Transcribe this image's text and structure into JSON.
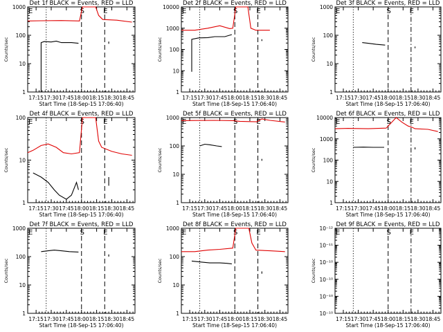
{
  "chart_data": [
    {
      "type": "line",
      "title": "Det 1f BLACK = Events, RED = LLD",
      "ylabel": "Counts/sec",
      "xlabel": "Start Time (18-Sep-15 17:06:40)",
      "yscale": "log",
      "ylim": [
        1,
        1000
      ],
      "ytick_labels": [
        "1",
        "10",
        "100",
        "1000"
      ],
      "x_tick_labels": [
        "17:15",
        "17:30",
        "17:45",
        "18:00",
        "18:15",
        "18:30",
        "18:45"
      ],
      "vlines": [
        {
          "time": "17:25",
          "style": "dotted"
        },
        {
          "time": "18:00",
          "style": "dashed",
          "label": "S"
        },
        {
          "time": "18:23",
          "style": "dashed",
          "label": "E"
        }
      ],
      "start_edge_label": "E",
      "series": [
        {
          "color": "#e00000",
          "points": [
            [
              "17:06:40",
              320
            ],
            [
              "17:20",
              325
            ],
            [
              "17:40",
              330
            ],
            [
              "17:58",
              320
            ],
            [
              "18:01",
              1000
            ],
            [
              "18:14",
              1000
            ],
            [
              "18:17",
              500
            ],
            [
              "18:21",
              360
            ],
            [
              "18:35",
              340
            ],
            [
              "18:50",
              290
            ]
          ]
        },
        {
          "color": "#000000",
          "points": [
            [
              "17:20",
              1
            ],
            [
              "17:20",
              55
            ],
            [
              "17:23",
              60
            ],
            [
              "17:30",
              58
            ],
            [
              "17:35",
              62
            ],
            [
              "17:40",
              55
            ],
            [
              "17:50",
              55
            ],
            [
              "17:57",
              52
            ]
          ]
        },
        {
          "color": "#000000",
          "points": [
            [
              "18:27",
              60
            ],
            [
              "18:27",
              50
            ]
          ]
        }
      ]
    },
    {
      "type": "line",
      "title": "Det 2f BLACK = Events, RED = LLD",
      "ylabel": "Counts/sec",
      "xlabel": "Start Time (18-Sep-15 17:06:40)",
      "yscale": "log",
      "ylim": [
        1,
        10000
      ],
      "ytick_labels": [
        "1",
        "10",
        "100",
        "1000",
        "10000"
      ],
      "x_tick_labels": [
        "17:15",
        "17:30",
        "17:45",
        "18:00",
        "18:15",
        "18:30",
        "18:45"
      ],
      "vlines": [
        {
          "time": "17:25",
          "style": "dotted"
        },
        {
          "time": "18:00",
          "style": "dashed",
          "label": "S"
        },
        {
          "time": "18:23",
          "style": "dashed",
          "label": "E"
        }
      ],
      "start_edge_label": "E",
      "series": [
        {
          "color": "#e00000",
          "points": [
            [
              "17:06:40",
              800
            ],
            [
              "17:20",
              800
            ],
            [
              "17:33",
              1000
            ],
            [
              "17:45",
              1300
            ],
            [
              "17:55",
              950
            ],
            [
              "17:58",
              1000
            ],
            [
              "18:01",
              10000
            ],
            [
              "18:13",
              10000
            ],
            [
              "18:16",
              1000
            ],
            [
              "18:21",
              800
            ],
            [
              "18:35",
              800
            ]
          ]
        },
        {
          "color": "#000000",
          "points": [
            [
              "17:17",
              9
            ],
            [
              "17:17",
              300
            ],
            [
              "17:24",
              350
            ],
            [
              "17:33",
              360
            ],
            [
              "17:40",
              400
            ],
            [
              "17:50",
              400
            ],
            [
              "17:57",
              500
            ]
          ]
        },
        {
          "color": "#000000",
          "points": [
            [
              "18:27",
              300
            ],
            [
              "18:27",
              250
            ]
          ]
        }
      ]
    },
    {
      "type": "line",
      "title": "Det 3f BLACK = Events, RED = LLD",
      "ylabel": "Counts/sec",
      "xlabel": "Start Time (18-Sep-15 17:06:40)",
      "yscale": "log",
      "ylim": [
        1,
        1000
      ],
      "ytick_labels": [
        "1",
        "10",
        "100",
        "1000"
      ],
      "x_tick_labels": [
        "17:15",
        "17:30",
        "17:45",
        "18:00",
        "18:15",
        "18:30",
        "18:45"
      ],
      "vlines": [
        {
          "time": "17:25",
          "style": "dotted"
        },
        {
          "time": "18:00",
          "style": "dashed",
          "label": "S"
        },
        {
          "time": "18:23",
          "style": "dashdot",
          "label": "E"
        }
      ],
      "start_edge_label": "E",
      "series": [
        {
          "color": "#000000",
          "points": [
            [
              "17:34",
              55
            ],
            [
              "17:40",
              52
            ],
            [
              "17:48",
              48
            ],
            [
              "17:57",
              45
            ]
          ]
        },
        {
          "color": "#000000",
          "points": [
            [
              "18:27",
              40
            ],
            [
              "18:27",
              35
            ]
          ]
        }
      ]
    },
    {
      "type": "line",
      "title": "Det 4f BLACK = Events, RED = LLD",
      "ylabel": "Counts/sec",
      "xlabel": "Start Time (18-Sep-15 17:06:40)",
      "yscale": "log",
      "ylim": [
        1,
        100
      ],
      "ytick_labels": [
        "1",
        "10",
        "100"
      ],
      "x_tick_labels": [
        "17:15",
        "17:30",
        "17:45",
        "18:00",
        "18:15",
        "18:30",
        "18:45"
      ],
      "vlines": [
        {
          "time": "17:25",
          "style": "dotted"
        },
        {
          "time": "18:00",
          "style": "dashed",
          "label": "S"
        },
        {
          "time": "18:23",
          "style": "dashed",
          "label": "E"
        }
      ],
      "start_edge_label": "E",
      "series": [
        {
          "color": "#e00000",
          "points": [
            [
              "17:06:40",
              15
            ],
            [
              "17:12",
              17
            ],
            [
              "17:20",
              22
            ],
            [
              "17:27",
              24
            ],
            [
              "17:35",
              20
            ],
            [
              "17:42",
              15
            ],
            [
              "17:50",
              14
            ],
            [
              "17:58",
              15
            ],
            [
              "18:01",
              100
            ],
            [
              "18:14",
              100
            ],
            [
              "18:17",
              28
            ],
            [
              "18:20",
              20
            ],
            [
              "18:30",
              16
            ],
            [
              "18:40",
              14
            ],
            [
              "18:50",
              13
            ]
          ]
        },
        {
          "color": "#000000",
          "points": [
            [
              "17:12",
              5
            ],
            [
              "17:20",
              4
            ],
            [
              "17:27",
              3
            ],
            [
              "17:33",
              2
            ],
            [
              "17:38",
              1.5
            ],
            [
              "17:45",
              1.2
            ],
            [
              "17:50",
              1.5
            ],
            [
              "17:55",
              3
            ],
            [
              "17:57",
              2
            ]
          ]
        },
        {
          "color": "#000000",
          "points": [
            [
              "18:27",
              4
            ],
            [
              "18:27",
              2.5
            ]
          ]
        }
      ]
    },
    {
      "type": "line",
      "title": "Det 5f BLACK = Events, RED = LLD",
      "ylabel": "Counts/sec",
      "xlabel": "Start Time (18-Sep-15 17:06:40)",
      "yscale": "log",
      "ylim": [
        1,
        1000
      ],
      "ytick_labels": [
        "1",
        "10",
        "100",
        "1000"
      ],
      "x_tick_labels": [
        "17:15",
        "17:30",
        "17:45",
        "18:00",
        "18:15",
        "18:30",
        "18:45"
      ],
      "vlines": [
        {
          "time": "17:25",
          "style": "dotted"
        },
        {
          "time": "18:00",
          "style": "dashed",
          "label": "S"
        },
        {
          "time": "18:23",
          "style": "dashed",
          "label": "E"
        }
      ],
      "start_edge_label": "E",
      "series": [
        {
          "color": "#e00000",
          "points": [
            [
              "17:06:40",
              780
            ],
            [
              "17:20",
              790
            ],
            [
              "17:40",
              800
            ],
            [
              "17:58",
              780
            ],
            [
              "18:05",
              740
            ],
            [
              "18:15",
              720
            ],
            [
              "18:22",
              710
            ],
            [
              "18:27",
              900
            ],
            [
              "18:35",
              800
            ],
            [
              "18:50",
              700
            ]
          ]
        },
        {
          "color": "#000000",
          "points": [
            [
              "17:25",
              100
            ],
            [
              "17:30",
              115
            ],
            [
              "17:35",
              110
            ],
            [
              "17:42",
              100
            ],
            [
              "17:47",
              95
            ]
          ]
        },
        {
          "color": "#000000",
          "points": [
            [
              "18:27",
              35
            ],
            [
              "18:27",
              30
            ]
          ]
        }
      ]
    },
    {
      "type": "line",
      "title": "Det 6f BLACK = Events, RED = LLD",
      "ylabel": "Counts/sec",
      "xlabel": "Start Time (18-Sep-15 17:06:40)",
      "yscale": "log",
      "ylim": [
        1,
        10000
      ],
      "ytick_labels": [
        "1",
        "10",
        "100",
        "1000",
        "10000"
      ],
      "x_tick_labels": [
        "17:15",
        "17:30",
        "17:45",
        "18:00",
        "18:15",
        "18:30",
        "18:45"
      ],
      "vlines": [
        {
          "time": "17:25",
          "style": "dotted"
        },
        {
          "time": "18:00",
          "style": "dashed",
          "label": "S"
        },
        {
          "time": "18:23",
          "style": "dashdot",
          "label": "E"
        }
      ],
      "start_edge_label": "E",
      "series": [
        {
          "color": "#e00000",
          "points": [
            [
              "17:06:40",
              3000
            ],
            [
              "17:20",
              3100
            ],
            [
              "17:40",
              3000
            ],
            [
              "17:58",
              3200
            ],
            [
              "18:02",
              5000
            ],
            [
              "18:08",
              10000
            ],
            [
              "18:14",
              6000
            ],
            [
              "18:20",
              4000
            ],
            [
              "18:24",
              3500
            ],
            [
              "18:27",
              3000
            ],
            [
              "18:40",
              2800
            ],
            [
              "18:50",
              2200
            ]
          ]
        },
        {
          "color": "#000000",
          "points": [
            [
              "17:25",
              400
            ],
            [
              "17:35",
              410
            ],
            [
              "17:45",
              400
            ],
            [
              "17:56",
              400
            ]
          ]
        },
        {
          "color": "#000000",
          "points": [
            [
              "18:27",
              400
            ],
            [
              "18:27",
              320
            ]
          ]
        }
      ]
    },
    {
      "type": "line",
      "title": "Det 7f BLACK = Events, RED = LLD",
      "ylabel": "Counts/sec",
      "xlabel": "Start Time (18-Sep-15 17:06:40)",
      "yscale": "log",
      "ylim": [
        1,
        1000
      ],
      "ytick_labels": [
        "1",
        "10",
        "100",
        "1000"
      ],
      "x_tick_labels": [
        "17:15",
        "17:30",
        "17:45",
        "18:00",
        "18:15",
        "18:30",
        "18:45"
      ],
      "vlines": [
        {
          "time": "17:25",
          "style": "dotted"
        },
        {
          "time": "18:00",
          "style": "dashed",
          "label": "S"
        },
        {
          "time": "18:23",
          "style": "dashed",
          "label": "E"
        }
      ],
      "start_edge_label": "E",
      "series": [
        {
          "color": "#000000",
          "points": [
            [
              "17:20",
              150
            ],
            [
              "17:27",
              160
            ],
            [
              "17:33",
              170
            ],
            [
              "17:40",
              160
            ],
            [
              "17:48",
              150
            ],
            [
              "17:57",
              145
            ]
          ]
        },
        {
          "color": "#000000",
          "points": [
            [
              "18:27",
              120
            ],
            [
              "18:27",
              100
            ]
          ]
        }
      ]
    },
    {
      "type": "line",
      "title": "Det 8f BLACK = Events, RED = LLD",
      "ylabel": "Counts/sec",
      "xlabel": "Start Time (18-Sep-15 17:06:40)",
      "yscale": "log",
      "ylim": [
        1,
        1000
      ],
      "ytick_labels": [
        "1",
        "10",
        "100",
        "1000"
      ],
      "x_tick_labels": [
        "17:15",
        "17:30",
        "17:45",
        "18:00",
        "18:15",
        "18:30",
        "18:45"
      ],
      "vlines": [
        {
          "time": "17:25",
          "style": "dotted"
        },
        {
          "time": "18:00",
          "style": "dashed",
          "label": "S"
        },
        {
          "time": "18:23",
          "style": "dashed",
          "label": "E"
        }
      ],
      "start_edge_label": "E",
      "series": [
        {
          "color": "#e00000",
          "points": [
            [
              "17:06:40",
              150
            ],
            [
              "17:20",
              150
            ],
            [
              "17:33",
              170
            ],
            [
              "17:45",
              180
            ],
            [
              "17:58",
              200
            ],
            [
              "18:01",
              1000
            ],
            [
              "18:14",
              1000
            ],
            [
              "18:17",
              300
            ],
            [
              "18:21",
              170
            ],
            [
              "18:35",
              160
            ],
            [
              "18:50",
              150
            ]
          ]
        },
        {
          "color": "#000000",
          "points": [
            [
              "17:17",
              70
            ],
            [
              "17:25",
              65
            ],
            [
              "17:35",
              60
            ],
            [
              "17:45",
              60
            ],
            [
              "17:52",
              58
            ],
            [
              "17:57",
              55
            ]
          ]
        },
        {
          "color": "#000000",
          "points": [
            [
              "18:27",
              30
            ],
            [
              "18:27",
              25
            ]
          ]
        }
      ]
    },
    {
      "type": "line",
      "title": "Det 9f BLACK = Events, RED = LLD",
      "ylabel": "Counts/sec",
      "xlabel": "Start Time (18-Sep-15 17:06:40)",
      "yscale": "log",
      "ylim": [
        1e-12,
        1e-10
      ],
      "ytick_labels": [
        "10⁻¹⁰",
        "10⁻¹⁰",
        "10⁻¹⁰",
        "10⁻¹⁰",
        "10⁻¹¹",
        "10⁻¹²"
      ],
      "x_tick_labels": [
        "17:15",
        "17:30",
        "17:45",
        "18:00",
        "18:15",
        "18:30",
        "18:45"
      ],
      "vlines": [
        {
          "time": "17:25",
          "style": "dotted"
        },
        {
          "time": "18:00",
          "style": "dashed",
          "label": "S"
        },
        {
          "time": "18:23",
          "style": "dashdot",
          "label": "E"
        }
      ],
      "start_edge_label": "E",
      "series": []
    }
  ]
}
